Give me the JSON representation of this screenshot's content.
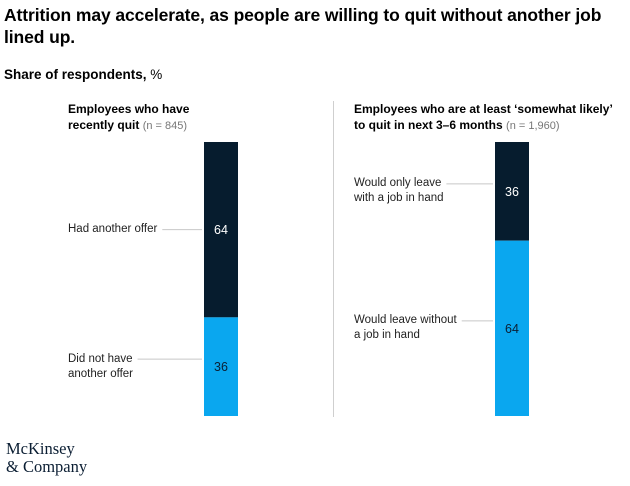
{
  "title": "Attrition may accelerate, as people are willing to quit without another job lined up.",
  "subtitle": {
    "bold": "Share of respondents,",
    "unit": "%"
  },
  "logo": {
    "line1": "McKinsey",
    "line2": "& Company"
  },
  "colors": {
    "dark": "#061c2e",
    "blue": "#0aa7ef"
  },
  "chart_data": {
    "type": "bar",
    "stacked": true,
    "unit": "%",
    "panels": [
      {
        "header_line1": "Employees who have",
        "header_line2": "recently quit",
        "n": "(n = 845)",
        "segments": [
          {
            "label_line1": "Had another offer",
            "label_line2": "",
            "value": 64,
            "value_label": "64",
            "color": "#061c2e"
          },
          {
            "label_line1": "Did not have",
            "label_line2": "another offer",
            "value": 36,
            "value_label": "36",
            "color": "#0aa7ef"
          }
        ]
      },
      {
        "header_line1": "Employees who are at least ‘somewhat likely’",
        "header_line2": "to quit in next 3–6 months",
        "n": "(n = 1,960)",
        "segments": [
          {
            "label_line1": "Would only leave",
            "label_line2": "with a job in hand",
            "value": 36,
            "value_label": "36",
            "color": "#061c2e"
          },
          {
            "label_line1": "Would leave without",
            "label_line2": "a job in hand",
            "value": 64,
            "value_label": "64",
            "color": "#0aa7ef"
          }
        ]
      }
    ]
  }
}
